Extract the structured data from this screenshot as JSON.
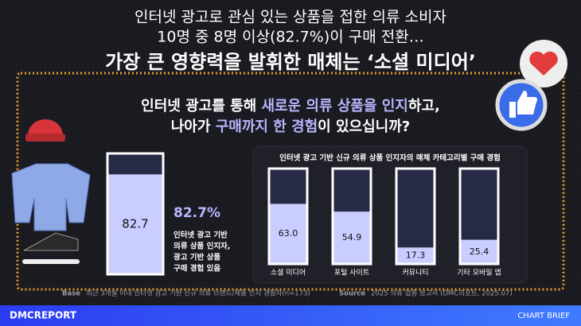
{
  "header": {
    "line1": "인터넷 광고로 관심 있는 상품을 접한 의류 소비자",
    "line2": "10명 중 8명 이상(82.7%)이 구매 전환…",
    "headline": "가장 큰 영향력을 발휘한 매체는 ‘소셜 미디어’"
  },
  "question": {
    "line1": [
      "인터넷 광고를 통해 ",
      "새로운 의류 상품을 인지",
      "하고,"
    ],
    "line2": [
      "나아가 ",
      "구매까지 한 경험",
      "이 있으십니까?"
    ]
  },
  "chart_data": [
    {
      "type": "bar",
      "values": [
        82.7
      ],
      "ylim": [
        0,
        100
      ],
      "color": "#c9cdff",
      "annotation": "82.7%",
      "description": [
        "인터넷 광고 기반",
        "의류 상품 인지자,",
        "광고 기반 상품",
        "구매 경험 있음"
      ]
    },
    {
      "type": "bar",
      "title": "인터넷 광고 기반 신규 의류 상품 인지자의 매체 카테고리별 구매 경험",
      "categories": [
        "소셜 미디어",
        "포털 사이트",
        "커뮤니티",
        "기타 모바일 앱"
      ],
      "values": [
        63.0,
        54.9,
        17.3,
        25.4
      ],
      "value_labels": [
        "63.0",
        "54.9",
        "17.3",
        "25.4"
      ],
      "ylim": [
        0,
        100
      ],
      "color": "#c9cdff"
    }
  ],
  "footer": {
    "base_label": "Base",
    "base": "최근 3개월 이내 인터넷 광고 기반 신규 의류 브랜드/제품 인지 경험자(n=173)",
    "source_label": "Source",
    "source": "2025 의류 업종 보고서 (DMC리포트, 2025.07)",
    "brand": "DMCREPORT",
    "tag": "CHART BRIEF"
  }
}
